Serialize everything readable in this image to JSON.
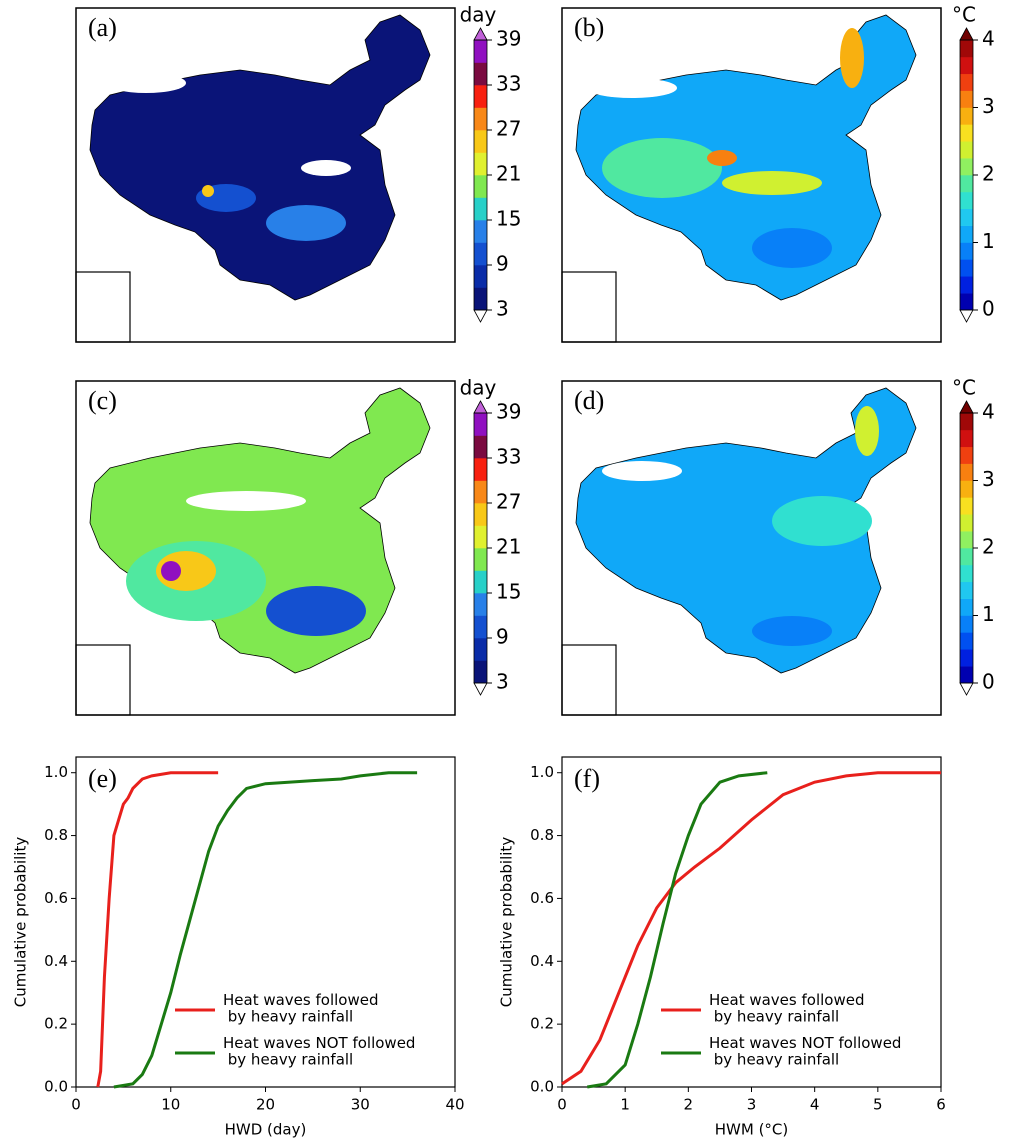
{
  "chart_data": [
    {
      "type": "map",
      "label": "(a)",
      "colorbar_label": "day",
      "clim": [
        3,
        39
      ],
      "colorbar_ticks": [
        3,
        9,
        15,
        21,
        27,
        33,
        39
      ],
      "colors": [
        "#0a1478",
        "#0a2ca8",
        "#1450d0",
        "#2880e8",
        "#28d0c8",
        "#80e850",
        "#e0f030",
        "#f8c818",
        "#f88818",
        "#f82010",
        "#7a0a40",
        "#9010c0"
      ],
      "extend_colors": [
        "#ffffff",
        "#c060d8"
      ]
    },
    {
      "type": "map",
      "label": "(b)",
      "colorbar_label": "°C",
      "clim": [
        0,
        4
      ],
      "colorbar_ticks": [
        0,
        1,
        2,
        3,
        4
      ],
      "colors": [
        "#0000b0",
        "#0020e0",
        "#0050f0",
        "#0880f8",
        "#10a8f8",
        "#20c8f0",
        "#30e0d0",
        "#50e8a0",
        "#90f060",
        "#d0f030",
        "#f8e020",
        "#f8b010",
        "#f88010",
        "#f04010",
        "#d01010",
        "#a00808"
      ],
      "extend_colors": [
        "#ffffff",
        "#700000"
      ]
    },
    {
      "type": "map",
      "label": "(c)",
      "colorbar_label": "day",
      "clim": [
        3,
        39
      ],
      "colorbar_ticks": [
        3,
        9,
        15,
        21,
        27,
        33,
        39
      ],
      "colors": [
        "#0a1478",
        "#0a2ca8",
        "#1450d0",
        "#2880e8",
        "#28d0c8",
        "#80e850",
        "#e0f030",
        "#f8c818",
        "#f88818",
        "#f82010",
        "#7a0a40",
        "#9010c0"
      ],
      "extend_colors": [
        "#ffffff",
        "#c060d8"
      ]
    },
    {
      "type": "map",
      "label": "(d)",
      "colorbar_label": "°C",
      "clim": [
        0,
        4
      ],
      "colorbar_ticks": [
        0,
        1,
        2,
        3,
        4
      ],
      "colors": [
        "#0000b0",
        "#0020e0",
        "#0050f0",
        "#0880f8",
        "#10a8f8",
        "#20c8f0",
        "#30e0d0",
        "#50e8a0",
        "#90f060",
        "#d0f030",
        "#f8e020",
        "#f8b010",
        "#f88010",
        "#f04010",
        "#d01010",
        "#a00808"
      ],
      "extend_colors": [
        "#ffffff",
        "#700000"
      ]
    },
    {
      "type": "line",
      "label": "(e)",
      "xlabel": "HWD (day)",
      "ylabel": "Cumulative probability",
      "xlim": [
        0,
        40
      ],
      "ylim": [
        0,
        1.05
      ],
      "xticks": [
        0,
        10,
        20,
        30,
        40
      ],
      "yticks": [
        {
          "value": 0,
          "label": "0.0"
        },
        0.2,
        0.4,
        0.6,
        0.8,
        {
          "value": 1,
          "label": "1.0"
        }
      ],
      "series": [
        {
          "name": "Heat waves followed\n by heavy rainfall",
          "color": "#e8201c",
          "x": [
            2.3,
            2.6,
            2.8,
            3.0,
            3.2,
            3.5,
            3.8,
            4.0,
            4.5,
            5,
            5.5,
            6,
            7,
            8,
            10,
            15
          ],
          "values": [
            0,
            0.05,
            0.2,
            0.35,
            0.45,
            0.6,
            0.72,
            0.8,
            0.85,
            0.9,
            0.92,
            0.95,
            0.98,
            0.99,
            1.0,
            1.0
          ]
        },
        {
          "name": "Heat waves NOT followed\n by heavy rainfall",
          "color": "#1a7a12",
          "x": [
            4,
            6,
            7,
            8,
            9,
            10,
            11,
            12,
            13,
            14,
            15,
            16,
            17,
            18,
            20,
            25,
            28,
            30,
            33,
            36
          ],
          "values": [
            0,
            0.01,
            0.04,
            0.1,
            0.2,
            0.3,
            0.42,
            0.53,
            0.64,
            0.75,
            0.83,
            0.88,
            0.92,
            0.95,
            0.965,
            0.975,
            0.98,
            0.99,
            1.0,
            1.0
          ]
        }
      ]
    },
    {
      "type": "line",
      "label": "(f)",
      "xlabel": "HWM (°C)",
      "ylabel": "Cumulative probability",
      "xlim": [
        0,
        6
      ],
      "ylim": [
        0,
        1.05
      ],
      "xticks": [
        0,
        1,
        2,
        3,
        4,
        5,
        6
      ],
      "yticks": [
        {
          "value": 0,
          "label": "0.0"
        },
        0.2,
        0.4,
        0.6,
        0.8,
        {
          "value": 1,
          "label": "1.0"
        }
      ],
      "series": [
        {
          "name": "Heat waves followed\n by heavy rainfall",
          "color": "#e8201c",
          "x": [
            0,
            0.3,
            0.6,
            0.9,
            1.2,
            1.5,
            1.8,
            2.1,
            2.5,
            3,
            3.5,
            4,
            4.5,
            5,
            6
          ],
          "values": [
            0.01,
            0.05,
            0.15,
            0.3,
            0.45,
            0.57,
            0.65,
            0.7,
            0.76,
            0.85,
            0.93,
            0.97,
            0.99,
            1.0,
            1.0
          ]
        },
        {
          "name": "Heat waves NOT followed\n by heavy rainfall",
          "color": "#1a7a12",
          "x": [
            0.4,
            0.7,
            1.0,
            1.2,
            1.4,
            1.6,
            1.8,
            2.0,
            2.2,
            2.5,
            2.8,
            3.25
          ],
          "values": [
            0,
            0.01,
            0.07,
            0.2,
            0.35,
            0.52,
            0.68,
            0.8,
            0.9,
            0.97,
            0.99,
            1.0
          ]
        }
      ]
    }
  ]
}
